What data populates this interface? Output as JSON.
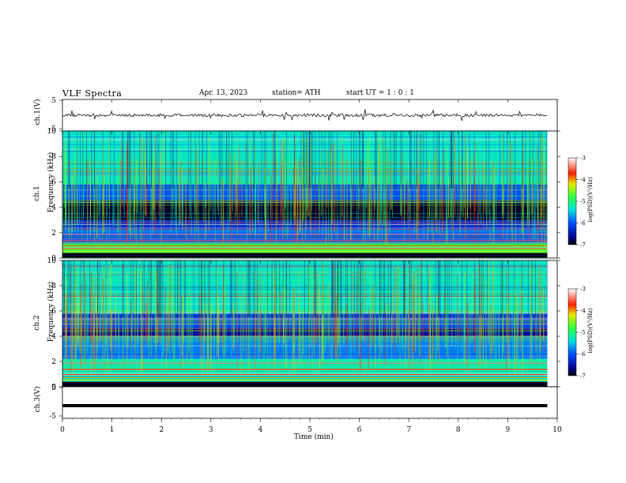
{
  "header": {
    "title": "VLF  Spectra",
    "date": "Apr. 13, 2023",
    "station": "station= ATH",
    "start": "start  UT  =    1  : 0   : 1"
  },
  "panels": {
    "ch1_waveform": {
      "ylabel": "ch.1(V)",
      "yticks": [
        "5",
        "-5"
      ]
    },
    "ch1_spec": {
      "ylabel1": "ch.1",
      "ylabel2": "Frequency  (kHz)",
      "yticks": [
        "10",
        "8",
        "6",
        "4",
        "2",
        "0"
      ]
    },
    "ch2_spec": {
      "ylabel1": "ch.2",
      "ylabel2": "Frequency  (kHz)",
      "yticks": [
        "10",
        "8",
        "6",
        "4",
        "2",
        "0"
      ]
    },
    "ch3_waveform": {
      "ylabel": "ch.3(V)",
      "yticks": [
        "5",
        "-5"
      ]
    }
  },
  "colorbar": {
    "label": "log(PSD)(V²/Hz)",
    "ticks": [
      "-3",
      "-4",
      "-5",
      "-6",
      "-7"
    ],
    "range": [
      -7,
      -3
    ]
  },
  "chart_data": {
    "type": "heatmap",
    "xlabel": "Time  (min)",
    "xticks": [
      "0",
      "1",
      "2",
      "3",
      "4",
      "5",
      "6",
      "7",
      "8",
      "9",
      "10"
    ],
    "xlim": [
      0,
      10
    ],
    "data_end_min": 9.8,
    "ylim_khz": [
      0,
      10
    ],
    "waveform_ylim": [
      -5,
      5
    ],
    "ch3_level_v": -1,
    "ch1_bands": [
      {
        "from_khz": 0,
        "to_khz": 0.4,
        "level": -7
      },
      {
        "from_khz": 0.4,
        "to_khz": 1.2,
        "level": -4.8
      },
      {
        "from_khz": 1.2,
        "to_khz": 2.2,
        "level": -5.9
      },
      {
        "from_khz": 2.2,
        "to_khz": 3.0,
        "level": -6.3
      },
      {
        "from_khz": 3.0,
        "to_khz": 4.6,
        "level": -6.9
      },
      {
        "from_khz": 4.6,
        "to_khz": 5.8,
        "level": -6.0
      },
      {
        "from_khz": 5.8,
        "to_khz": 10,
        "level": -5.3
      }
    ],
    "ch2_bands": [
      {
        "from_khz": 0,
        "to_khz": 0.4,
        "level": -7
      },
      {
        "from_khz": 0.4,
        "to_khz": 2.2,
        "level": -5.2
      },
      {
        "from_khz": 2.2,
        "to_khz": 4.0,
        "level": -5.8
      },
      {
        "from_khz": 4.0,
        "to_khz": 4.6,
        "level": -6.6
      },
      {
        "from_khz": 4.6,
        "to_khz": 5.8,
        "level": -6.1
      },
      {
        "from_khz": 5.8,
        "to_khz": 10,
        "level": -5.3
      }
    ]
  }
}
